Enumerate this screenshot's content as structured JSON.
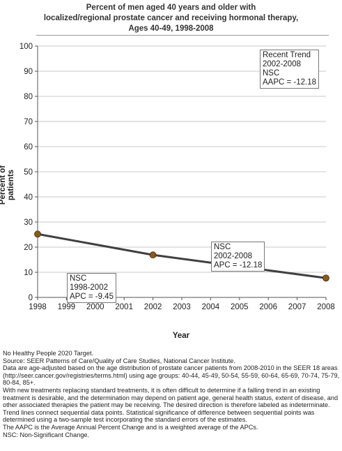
{
  "chart_data": {
    "type": "line",
    "title_lines": [
      "Percent of men aged 40 years and older with",
      "localized/regional prostate cancer and receiving hormonal therapy,",
      "Ages 40-49,  1998-2008"
    ],
    "xlabel": "Year",
    "ylabel": "Percent of patients",
    "x_ticks": [
      "1998",
      "1999",
      "2000",
      "2001",
      "2002",
      "2003",
      "2004",
      "2005",
      "2006",
      "2007",
      "2008"
    ],
    "y_ticks": [
      "0",
      "10",
      "20",
      "30",
      "40",
      "50",
      "60",
      "70",
      "80",
      "90",
      "100"
    ],
    "xlim": [
      1998,
      2008
    ],
    "ylim": [
      0,
      100
    ],
    "grid": "horizontal",
    "series": [
      {
        "x": [
          1998,
          2002,
          2008
        ],
        "values": [
          25.2,
          16.9,
          7.7
        ],
        "color": "#404040",
        "marker_color": "#8a5a1a"
      }
    ],
    "annotations": {
      "recent": [
        "Recent Trend",
        "2002-2008",
        "NSC",
        "AAPC = -12.18"
      ],
      "seg2": [
        "NSC",
        "2002-2008",
        "APC = -12.18"
      ],
      "seg1": [
        "NSC",
        "1998-2002",
        "APC = -9.45"
      ]
    }
  },
  "footnotes": [
    "No Healthy People 2020 Target.",
    "Source: SEER Patterns of Care/Quality of Care Studies, National Cancer Institute.",
    "Data are age-adjusted based on the age distribution of prostate cancer patients from 2008-2010 in the SEER 18 areas (http://seer.cancer.gov/registries/terms.html) using age groups: 40-44, 45-49, 50-54, 55-59, 60-64, 65-69, 70-74, 75-79, 80-84, 85+.",
    "With new treatments replacing standard treatments, it is often difficult to determine if a falling trend in an existing treatment is desirable, and the determination may depend on patient age, general health status, extent of disease, and other associated therapies the patient may be receiving.  The desired direction is therefore labeled as indeterminate.",
    "Trend lines connect sequential data points. Statistical significance of difference between sequential points was determined using a two-sample test incorporating the standard errors of the estimates.",
    "The AAPC is the Average Annual Percent Change and is a weighted average of the APCs.",
    "NSC: Non-Significant Change."
  ]
}
